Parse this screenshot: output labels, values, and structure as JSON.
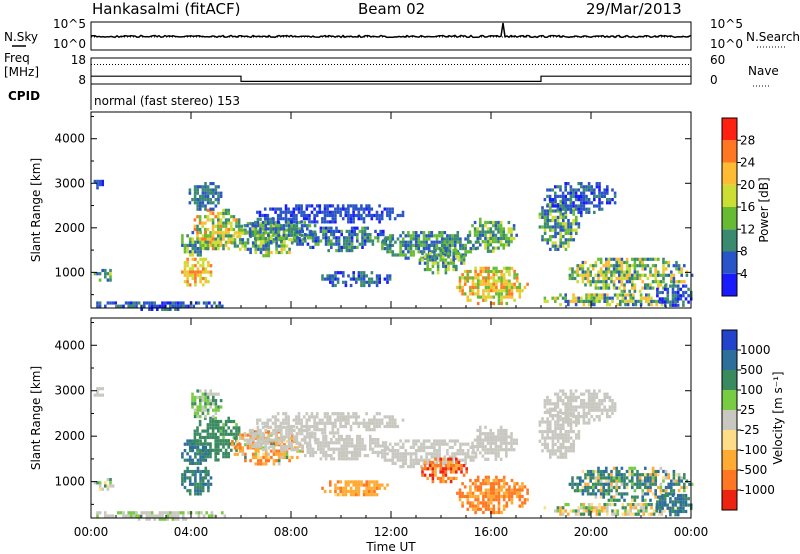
{
  "chart_data": {
    "type": "heatmap",
    "header": {
      "title_left": "Hankasalmi (fitACF)",
      "title_center": "Beam 02",
      "title_right": "29/Mar/2013",
      "mode_text": "normal (fast stereo) 153"
    },
    "noise_panel": {
      "left_label": "N.Sky",
      "right_label": "N.Search",
      "left_ticks": [
        "10^5",
        "10^0"
      ],
      "right_ticks": [
        "10^5",
        "10^0"
      ],
      "line_level_fraction": 0.7
    },
    "freq_panel": {
      "left_label_1": "Freq",
      "left_label_2": "[MHz]",
      "left_label_3": "CPID",
      "right_label": "Nave",
      "left_ticks": [
        "18",
        "8"
      ],
      "right_ticks": [
        "60",
        "0"
      ],
      "nave_value": 45,
      "freq_steps": [
        {
          "t_start": 0,
          "t_end": 6,
          "freq": 11
        },
        {
          "t_start": 6,
          "t_end": 18,
          "freq": 9
        },
        {
          "t_start": 18,
          "t_end": 24,
          "freq": 11
        }
      ]
    },
    "x_axis": {
      "label": "Time UT",
      "range_hours": [
        0,
        24
      ],
      "tick_labels": [
        "00:00",
        "04:00",
        "08:00",
        "12:00",
        "16:00",
        "20:00",
        "00:00"
      ]
    },
    "y_axis": {
      "label": "Slant Range [km]",
      "range_km": [
        200,
        4600
      ],
      "tick_labels": [
        "1000",
        "2000",
        "3000",
        "4000"
      ]
    },
    "power_panel": {
      "colorbar_label": "Power [dB]",
      "colorbar_ticks": [
        "4",
        "8",
        "12",
        "16",
        "20",
        "24",
        "28"
      ],
      "colors": [
        "#1a1aff",
        "#2a55c8",
        "#3a8a70",
        "#66bb33",
        "#ccdd33",
        "#ffbb33",
        "#ff7722",
        "#ff2211"
      ]
    },
    "velocity_panel": {
      "colorbar_label": "Velocity [m s⁻¹]",
      "colorbar_ticks": [
        "1000",
        "500",
        "100",
        "25",
        "-25",
        "-100",
        "-500",
        "-1000"
      ],
      "colors": [
        "#2244cc",
        "#2e6e9a",
        "#3a8a60",
        "#77cc44",
        "#c8c8c0",
        "#ffdd88",
        "#ffaa33",
        "#ff7722",
        "#ee2211"
      ]
    },
    "echo_regions": [
      {
        "t": [
          0.0,
          0.9
        ],
        "r": [
          800,
          1150
        ],
        "pw": [
          6,
          20
        ],
        "vel": [
          -80,
          80
        ]
      },
      {
        "t": [
          0.0,
          0.5
        ],
        "r": [
          2900,
          3150
        ],
        "pw": [
          4,
          10
        ],
        "vel": [
          -20,
          20
        ]
      },
      {
        "t": [
          0.0,
          5.5
        ],
        "r": [
          200,
          420
        ],
        "pw": [
          4,
          12
        ],
        "vel": [
          -20,
          40
        ]
      },
      {
        "t": [
          3.5,
          4.8
        ],
        "r": [
          700,
          1400
        ],
        "pw": [
          18,
          30
        ],
        "vel": [
          100,
          500
        ]
      },
      {
        "t": [
          3.5,
          4.8
        ],
        "r": [
          1400,
          2000
        ],
        "pw": [
          8,
          22
        ],
        "vel": [
          100,
          600
        ]
      },
      {
        "t": [
          4.0,
          6.0
        ],
        "r": [
          1500,
          2500
        ],
        "pw": [
          10,
          28
        ],
        "vel": [
          50,
          300
        ]
      },
      {
        "t": [
          3.8,
          5.2
        ],
        "r": [
          2400,
          3100
        ],
        "pw": [
          6,
          14
        ],
        "vel": [
          -20,
          100
        ]
      },
      {
        "t": [
          5.5,
          8.5
        ],
        "r": [
          1400,
          2200
        ],
        "pw": [
          8,
          24
        ],
        "vel": [
          -500,
          100
        ]
      },
      {
        "t": [
          6.0,
          9.0
        ],
        "r": [
          1700,
          2300
        ],
        "pw": [
          6,
          18
        ],
        "vel": [
          -25,
          25
        ]
      },
      {
        "t": [
          8.0,
          12.0
        ],
        "r": [
          1500,
          2100
        ],
        "pw": [
          4,
          16
        ],
        "vel": [
          -25,
          25
        ]
      },
      {
        "t": [
          6.5,
          12.5
        ],
        "r": [
          2100,
          2600
        ],
        "pw": [
          4,
          10
        ],
        "vel": [
          -25,
          25
        ]
      },
      {
        "t": [
          9.0,
          12.0
        ],
        "r": [
          700,
          1100
        ],
        "pw": [
          4,
          14
        ],
        "vel": [
          -400,
          -50
        ]
      },
      {
        "t": [
          11.5,
          15.5
        ],
        "r": [
          1300,
          2000
        ],
        "pw": [
          6,
          18
        ],
        "vel": [
          -25,
          25
        ]
      },
      {
        "t": [
          13.0,
          15.0
        ],
        "r": [
          1000,
          1600
        ],
        "pw": [
          8,
          20
        ],
        "vel": [
          -1000,
          -100
        ]
      },
      {
        "t": [
          14.5,
          17.5
        ],
        "r": [
          300,
          1200
        ],
        "pw": [
          14,
          30
        ],
        "vel": [
          -600,
          -100
        ]
      },
      {
        "t": [
          15.0,
          17.0
        ],
        "r": [
          1500,
          2300
        ],
        "pw": [
          8,
          20
        ],
        "vel": [
          -25,
          25
        ]
      },
      {
        "t": [
          17.8,
          19.5
        ],
        "r": [
          1500,
          2700
        ],
        "pw": [
          6,
          22
        ],
        "vel": [
          -25,
          25
        ]
      },
      {
        "t": [
          18.0,
          21.0
        ],
        "r": [
          2300,
          3100
        ],
        "pw": [
          4,
          12
        ],
        "vel": [
          -25,
          25
        ]
      },
      {
        "t": [
          18.0,
          23.5
        ],
        "r": [
          250,
          600
        ],
        "pw": [
          6,
          26
        ],
        "vel": [
          -100,
          100
        ]
      },
      {
        "t": [
          19.0,
          24.0
        ],
        "r": [
          600,
          1400
        ],
        "pw": [
          8,
          26
        ],
        "vel": [
          -100,
          500
        ]
      },
      {
        "t": [
          22.5,
          24.0
        ],
        "r": [
          250,
          800
        ],
        "pw": [
          4,
          14
        ],
        "vel": [
          100,
          600
        ]
      }
    ]
  }
}
